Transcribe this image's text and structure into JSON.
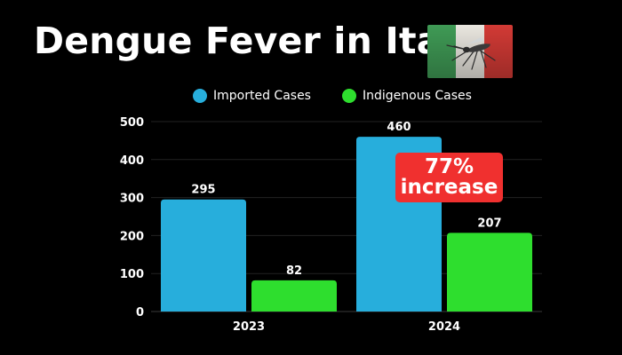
{
  "title": "Dengue Fever in Italy",
  "flag_icon": "italy-flag-mosquito-icon",
  "colors": {
    "background": "#000000",
    "imported": "#27aedc",
    "indigenous": "#2ede2e",
    "badge": "#f0302f",
    "text": "#ffffff",
    "grid": "#222222"
  },
  "annotation": {
    "line1": "77%",
    "line2": "increase"
  },
  "chart_data": {
    "type": "bar",
    "title": "Dengue Fever in Italy",
    "xlabel": "",
    "ylabel": "",
    "categories": [
      "2023",
      "2024"
    ],
    "series": [
      {
        "name": "Imported Cases",
        "values": [
          295,
          460
        ],
        "color": "#27aedc"
      },
      {
        "name": "Indigenous Cases",
        "values": [
          82,
          207
        ],
        "color": "#2ede2e"
      }
    ],
    "ylim": [
      0,
      500
    ],
    "yticks": [
      0,
      100,
      200,
      300,
      400,
      500
    ],
    "grid": true,
    "legend": "top-center",
    "data_labels": true
  }
}
